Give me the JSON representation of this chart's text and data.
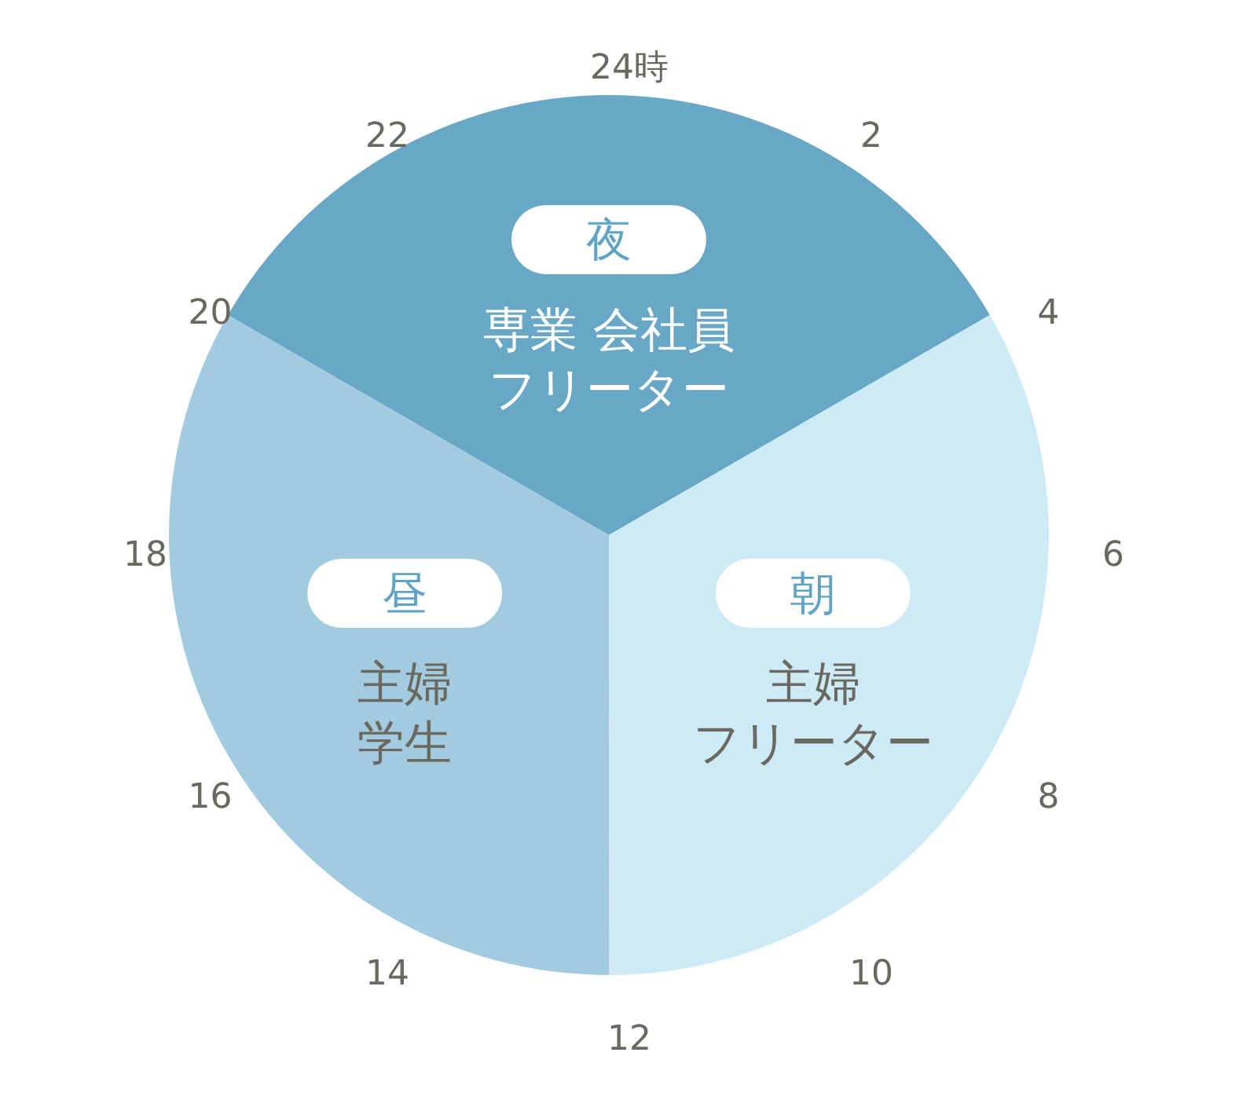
{
  "chart_data": {
    "type": "pie",
    "categories": [
      "夜",
      "朝",
      "昼"
    ],
    "values": [
      33.33,
      33.33,
      33.34
    ],
    "colors": [
      "#68a8c6",
      "#cdeaf7",
      "#a3cbe0"
    ],
    "annotations": [
      "専業 会社員",
      "フリーター",
      "主婦",
      "フリーター",
      "主婦",
      "学生",
      "24時",
      "2",
      "4",
      "6",
      "8",
      "10",
      "12",
      "14",
      "16",
      "18",
      "20",
      "22"
    ]
  }
}
